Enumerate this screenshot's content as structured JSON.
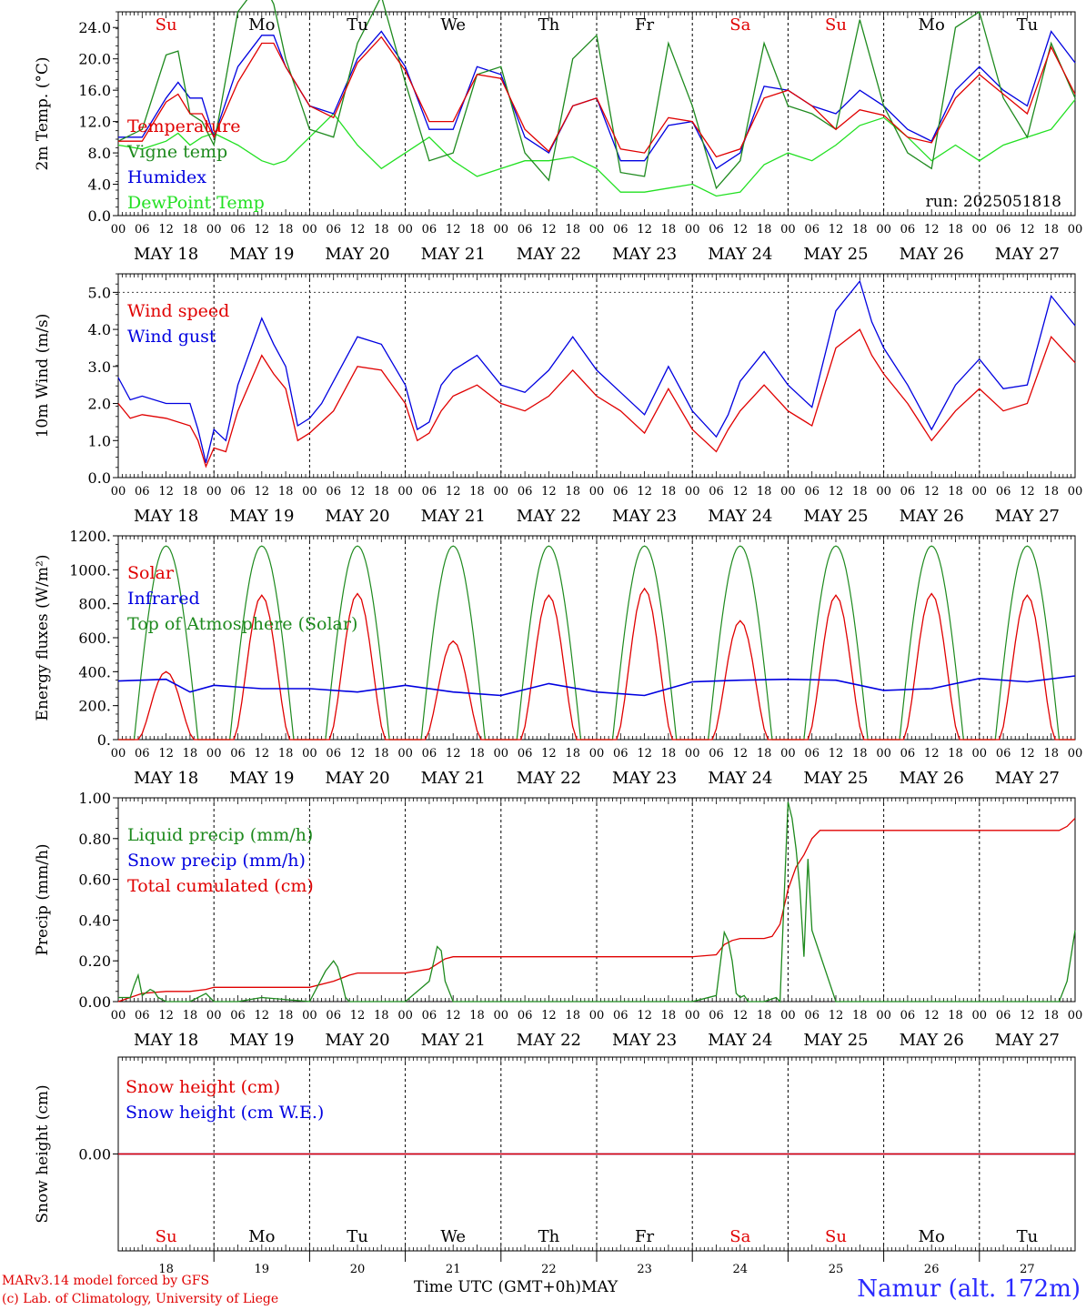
{
  "run_label": "run: 2025051818",
  "hour_ticks": [
    "00",
    "06",
    "12",
    "18"
  ],
  "hour_end": "00",
  "day_labels": [
    "MAY 18",
    "MAY 19",
    "MAY 20",
    "MAY 21",
    "MAY 22",
    "MAY 23",
    "MAY 24",
    "MAY 25",
    "MAY 26",
    "MAY 27"
  ],
  "weekdays": [
    {
      "name": "Su",
      "color": "#e00000"
    },
    {
      "name": "Mo",
      "color": "#000000"
    },
    {
      "name": "Tu",
      "color": "#000000"
    },
    {
      "name": "We",
      "color": "#000000"
    },
    {
      "name": "Th",
      "color": "#000000"
    },
    {
      "name": "Fr",
      "color": "#000000"
    },
    {
      "name": "Sa",
      "color": "#e00000"
    },
    {
      "name": "Su",
      "color": "#e00000"
    },
    {
      "name": "Mo",
      "color": "#000000"
    },
    {
      "name": "Tu",
      "color": "#000000"
    }
  ],
  "day_numbers": [
    "18",
    "19",
    "20",
    "21",
    "22",
    "23",
    "24",
    "25",
    "26",
    "27"
  ],
  "footer": {
    "model": "MARv3.14 model forced by GFS",
    "lab": "(c) Lab. of Climatology, University of Liege",
    "axis_title": "Time UTC (GMT+0h)",
    "month": "MAY",
    "station": "Namur (alt. 172m)"
  },
  "colors": {
    "red": "#e00000",
    "darkgreen": "#1e8a1e",
    "blue": "#0000e0",
    "lightgreen": "#22e022",
    "station": "#2a2aff"
  },
  "chart_data": [
    {
      "type": "line",
      "ylabel": "2m Temp. (°C)",
      "ylim": [
        0,
        26
      ],
      "yticks": [
        "0.0",
        "4.0",
        "8.0",
        "12.0",
        "16.0",
        "20.0",
        "24.0"
      ],
      "x_unit": "hours since MAY 18 00 UTC",
      "legend": [
        "Temperature",
        "Vigne temp",
        "Humidex",
        "DewPoint Temp"
      ],
      "series": [
        {
          "name": "Temperature",
          "color": "#e00000",
          "x": [
            0,
            6,
            12,
            15,
            18,
            21,
            24,
            30,
            36,
            39,
            42,
            48,
            54,
            60,
            66,
            72,
            78,
            84,
            90,
            96,
            102,
            108,
            114,
            120,
            126,
            132,
            138,
            144,
            150,
            156,
            162,
            168,
            174,
            180,
            186,
            192,
            198,
            204,
            210,
            216,
            222,
            228,
            234,
            240
          ],
          "y": [
            9.5,
            9.5,
            14.5,
            15.5,
            13,
            13,
            10,
            17,
            22,
            22,
            19,
            14,
            12.5,
            19.5,
            22.8,
            18.5,
            12,
            12,
            18,
            17.5,
            11,
            8.2,
            14,
            15,
            8.5,
            8,
            12.5,
            12,
            7.5,
            8.5,
            15,
            16,
            14,
            11,
            13.5,
            12.8,
            10,
            9.3,
            15,
            18,
            15.5,
            13,
            21.5,
            15.5
          ]
        },
        {
          "name": "Vigne temp",
          "color": "#1e8a1e",
          "x": [
            0,
            6,
            12,
            15,
            18,
            21,
            24,
            30,
            36,
            39,
            42,
            48,
            54,
            60,
            66,
            72,
            78,
            84,
            90,
            96,
            102,
            108,
            114,
            120,
            126,
            132,
            138,
            144,
            150,
            156,
            162,
            168,
            174,
            180,
            186,
            192,
            198,
            204,
            210,
            216,
            222,
            228,
            234,
            240
          ],
          "y": [
            9.5,
            11,
            20.5,
            21,
            13,
            12,
            9,
            26,
            30,
            27,
            20,
            11,
            10,
            22,
            28,
            17,
            7,
            8,
            18,
            19,
            8,
            4.5,
            20,
            23,
            5.5,
            5,
            22,
            14,
            3.5,
            7,
            22,
            14,
            13,
            11,
            25,
            14,
            8,
            6,
            24,
            26,
            15,
            10,
            22,
            15
          ]
        },
        {
          "name": "Humidex",
          "color": "#0000e0",
          "x": [
            0,
            6,
            12,
            15,
            18,
            21,
            24,
            30,
            36,
            39,
            42,
            48,
            54,
            60,
            66,
            72,
            78,
            84,
            90,
            96,
            102,
            108,
            114,
            120,
            126,
            132,
            138,
            144,
            150,
            156,
            162,
            168,
            174,
            180,
            186,
            192,
            198,
            204,
            210,
            216,
            222,
            228,
            234,
            240
          ],
          "y": [
            10,
            10,
            15,
            17,
            15,
            15,
            10,
            19,
            23,
            23,
            19,
            14,
            13,
            20,
            23.5,
            19,
            11,
            11,
            19,
            18,
            10,
            8,
            14,
            15,
            7,
            7,
            11.5,
            12,
            6,
            8,
            16.5,
            16,
            14,
            13,
            16,
            14,
            11,
            9.5,
            16,
            19,
            16,
            14,
            23.5,
            19.5
          ]
        },
        {
          "name": "DewPoint Temp",
          "color": "#22e022",
          "x": [
            0,
            6,
            12,
            15,
            18,
            21,
            24,
            30,
            36,
            39,
            42,
            48,
            54,
            60,
            66,
            72,
            78,
            84,
            90,
            96,
            102,
            108,
            114,
            120,
            126,
            132,
            138,
            144,
            150,
            156,
            162,
            168,
            174,
            180,
            186,
            192,
            198,
            204,
            210,
            216,
            222,
            228,
            234,
            240
          ],
          "y": [
            9,
            8.5,
            9.5,
            10.5,
            9,
            10,
            10.5,
            9,
            7,
            6.5,
            7,
            10,
            13,
            9,
            6,
            8,
            10,
            7,
            5,
            6,
            7,
            7,
            7.5,
            6,
            3,
            3,
            3.5,
            4,
            2.5,
            3,
            6.5,
            8,
            7,
            9,
            11.5,
            12.5,
            10,
            7,
            9,
            7,
            9,
            10,
            11,
            14.8
          ]
        }
      ]
    },
    {
      "type": "line",
      "ylabel": "10m Wind (m/s)",
      "ylim": [
        0,
        5.5
      ],
      "yticks": [
        "0.0",
        "1.0",
        "2.0",
        "3.0",
        "4.0",
        "5.0"
      ],
      "x_unit": "hours since MAY 18 00 UTC",
      "legend": [
        "Wind speed",
        "Wind gust"
      ],
      "series": [
        {
          "name": "Wind speed",
          "color": "#e00000",
          "x": [
            0,
            3,
            6,
            12,
            18,
            20,
            22,
            24,
            27,
            30,
            36,
            39,
            42,
            45,
            48,
            51,
            54,
            60,
            66,
            72,
            75,
            78,
            81,
            84,
            90,
            96,
            102,
            108,
            114,
            120,
            126,
            132,
            138,
            144,
            150,
            153,
            156,
            162,
            168,
            174,
            180,
            186,
            189,
            192,
            198,
            204,
            210,
            216,
            222,
            228,
            234,
            240
          ],
          "y": [
            2.0,
            1.6,
            1.7,
            1.6,
            1.4,
            1.0,
            0.3,
            0.8,
            0.7,
            1.8,
            3.3,
            2.8,
            2.4,
            1.0,
            1.2,
            1.5,
            1.8,
            3.0,
            2.9,
            2.0,
            1.0,
            1.2,
            1.8,
            2.2,
            2.5,
            2.0,
            1.8,
            2.2,
            2.9,
            2.2,
            1.8,
            1.2,
            2.4,
            1.3,
            0.7,
            1.3,
            1.8,
            2.5,
            1.8,
            1.4,
            3.5,
            4.0,
            3.3,
            2.8,
            2.0,
            1.0,
            1.8,
            2.4,
            1.8,
            2.0,
            3.8,
            3.1
          ]
        },
        {
          "name": "Wind gust",
          "color": "#0000e0",
          "x": [
            0,
            3,
            6,
            12,
            18,
            20,
            22,
            24,
            27,
            30,
            36,
            39,
            42,
            45,
            48,
            51,
            54,
            60,
            66,
            72,
            75,
            78,
            81,
            84,
            90,
            96,
            102,
            108,
            114,
            120,
            126,
            132,
            138,
            144,
            150,
            153,
            156,
            162,
            168,
            174,
            180,
            186,
            189,
            192,
            198,
            204,
            210,
            216,
            222,
            228,
            234,
            240
          ],
          "y": [
            2.7,
            2.1,
            2.2,
            2.0,
            2.0,
            1.3,
            0.4,
            1.3,
            1.0,
            2.5,
            4.3,
            3.6,
            3.0,
            1.4,
            1.6,
            2.0,
            2.6,
            3.8,
            3.6,
            2.5,
            1.3,
            1.5,
            2.5,
            2.9,
            3.3,
            2.5,
            2.3,
            2.9,
            3.8,
            2.9,
            2.3,
            1.7,
            3.0,
            1.8,
            1.1,
            1.7,
            2.6,
            3.4,
            2.5,
            1.9,
            4.5,
            5.3,
            4.2,
            3.5,
            2.5,
            1.3,
            2.5,
            3.2,
            2.4,
            2.5,
            4.9,
            4.1
          ]
        }
      ]
    },
    {
      "type": "line",
      "ylabel": "Energy fluxes (W/m²)",
      "ylim": [
        0,
        1200
      ],
      "yticks": [
        "0.",
        "200.",
        "400.",
        "600.",
        "800.",
        "1000.",
        "1200."
      ],
      "x_unit": "hours since MAY 18 00 UTC",
      "legend": [
        "Solar",
        "Infrared",
        "Top of Atmosphere (Solar)"
      ],
      "toa_daily": {
        "sunrise_h": 4,
        "sunset_h": 20,
        "peak": 1140
      },
      "solar_peaks": [
        400,
        850,
        860,
        580,
        850,
        890,
        700,
        850,
        860,
        850
      ],
      "series": [
        {
          "name": "Infrared",
          "color": "#0000e0",
          "x": [
            0,
            12,
            18,
            24,
            36,
            48,
            60,
            72,
            84,
            96,
            108,
            120,
            132,
            144,
            156,
            168,
            180,
            192,
            204,
            216,
            228,
            240
          ],
          "y": [
            345,
            355,
            280,
            320,
            300,
            300,
            280,
            320,
            280,
            260,
            330,
            280,
            260,
            340,
            350,
            355,
            350,
            290,
            300,
            360,
            340,
            375
          ]
        }
      ]
    },
    {
      "type": "line",
      "ylabel": "Precip (mm/h)",
      "ylim": [
        0,
        1.0
      ],
      "yticks": [
        "0.00",
        "0.20",
        "0.40",
        "0.60",
        "0.80",
        "1.00"
      ],
      "x_unit": "hours since MAY 18 00 UTC",
      "legend": [
        "Liquid precip (mm/h)",
        "Snow precip (mm/h)",
        "Total cumulated (cm)"
      ],
      "series": [
        {
          "name": "Liquid precip (mm/h)",
          "color": "#1e8a1e",
          "x": [
            0,
            3,
            4,
            5,
            6,
            8,
            9,
            10,
            12,
            18,
            22,
            24,
            26,
            30,
            36,
            48,
            52,
            54,
            55,
            56,
            57,
            58,
            60,
            72,
            78,
            80,
            81,
            82,
            84,
            96,
            108,
            144,
            150,
            152,
            153,
            154,
            155,
            156,
            157,
            158,
            162,
            165,
            166,
            167,
            168,
            169,
            170,
            171,
            172,
            173,
            174,
            180,
            192,
            204,
            216,
            228,
            236,
            238,
            240
          ],
          "y": [
            0.02,
            0.02,
            0.08,
            0.13,
            0.03,
            0.06,
            0.05,
            0.02,
            0.0,
            0.0,
            0.04,
            0.0,
            0.0,
            0.0,
            0.02,
            0.0,
            0.15,
            0.2,
            0.17,
            0.1,
            0.02,
            0.0,
            0.0,
            0.0,
            0.1,
            0.27,
            0.25,
            0.1,
            0.0,
            0.0,
            0.0,
            0.0,
            0.03,
            0.34,
            0.3,
            0.2,
            0.04,
            0.02,
            0.03,
            0.0,
            0.0,
            0.02,
            0.0,
            0.5,
            0.98,
            0.9,
            0.75,
            0.55,
            0.22,
            0.7,
            0.35,
            0.0,
            0.0,
            0.0,
            0.0,
            0.0,
            0.0,
            0.1,
            0.35
          ]
        },
        {
          "name": "Total cumulated (cm)",
          "color": "#e00000",
          "x": [
            0,
            6,
            12,
            18,
            22,
            24,
            36,
            48,
            54,
            58,
            60,
            72,
            78,
            82,
            84,
            96,
            108,
            120,
            132,
            144,
            150,
            152,
            154,
            156,
            162,
            164,
            166,
            168,
            170,
            172,
            174,
            176,
            180,
            192,
            204,
            216,
            228,
            236,
            238,
            240
          ],
          "y": [
            0.0,
            0.04,
            0.05,
            0.05,
            0.06,
            0.07,
            0.07,
            0.07,
            0.1,
            0.13,
            0.14,
            0.14,
            0.16,
            0.21,
            0.22,
            0.22,
            0.22,
            0.22,
            0.22,
            0.22,
            0.23,
            0.28,
            0.3,
            0.31,
            0.31,
            0.32,
            0.38,
            0.55,
            0.66,
            0.72,
            0.8,
            0.84,
            0.84,
            0.84,
            0.84,
            0.84,
            0.84,
            0.84,
            0.86,
            0.9
          ]
        }
      ]
    },
    {
      "type": "line",
      "ylabel": "Snow height (cm)",
      "ylim": [
        -1,
        1
      ],
      "yticks": [
        "0.00"
      ],
      "x_unit": "hours since MAY 18 00 UTC",
      "legend": [
        "Snow height (cm)",
        "Snow height (cm W.E.)"
      ],
      "series": [
        {
          "name": "Snow height (cm)",
          "color": "#e00000",
          "x": [
            0,
            240
          ],
          "y": [
            0,
            0
          ]
        },
        {
          "name": "Snow height (cm W.E.)",
          "color": "#0000e0",
          "x": [
            0,
            240
          ],
          "y": [
            0,
            0
          ]
        }
      ]
    }
  ]
}
